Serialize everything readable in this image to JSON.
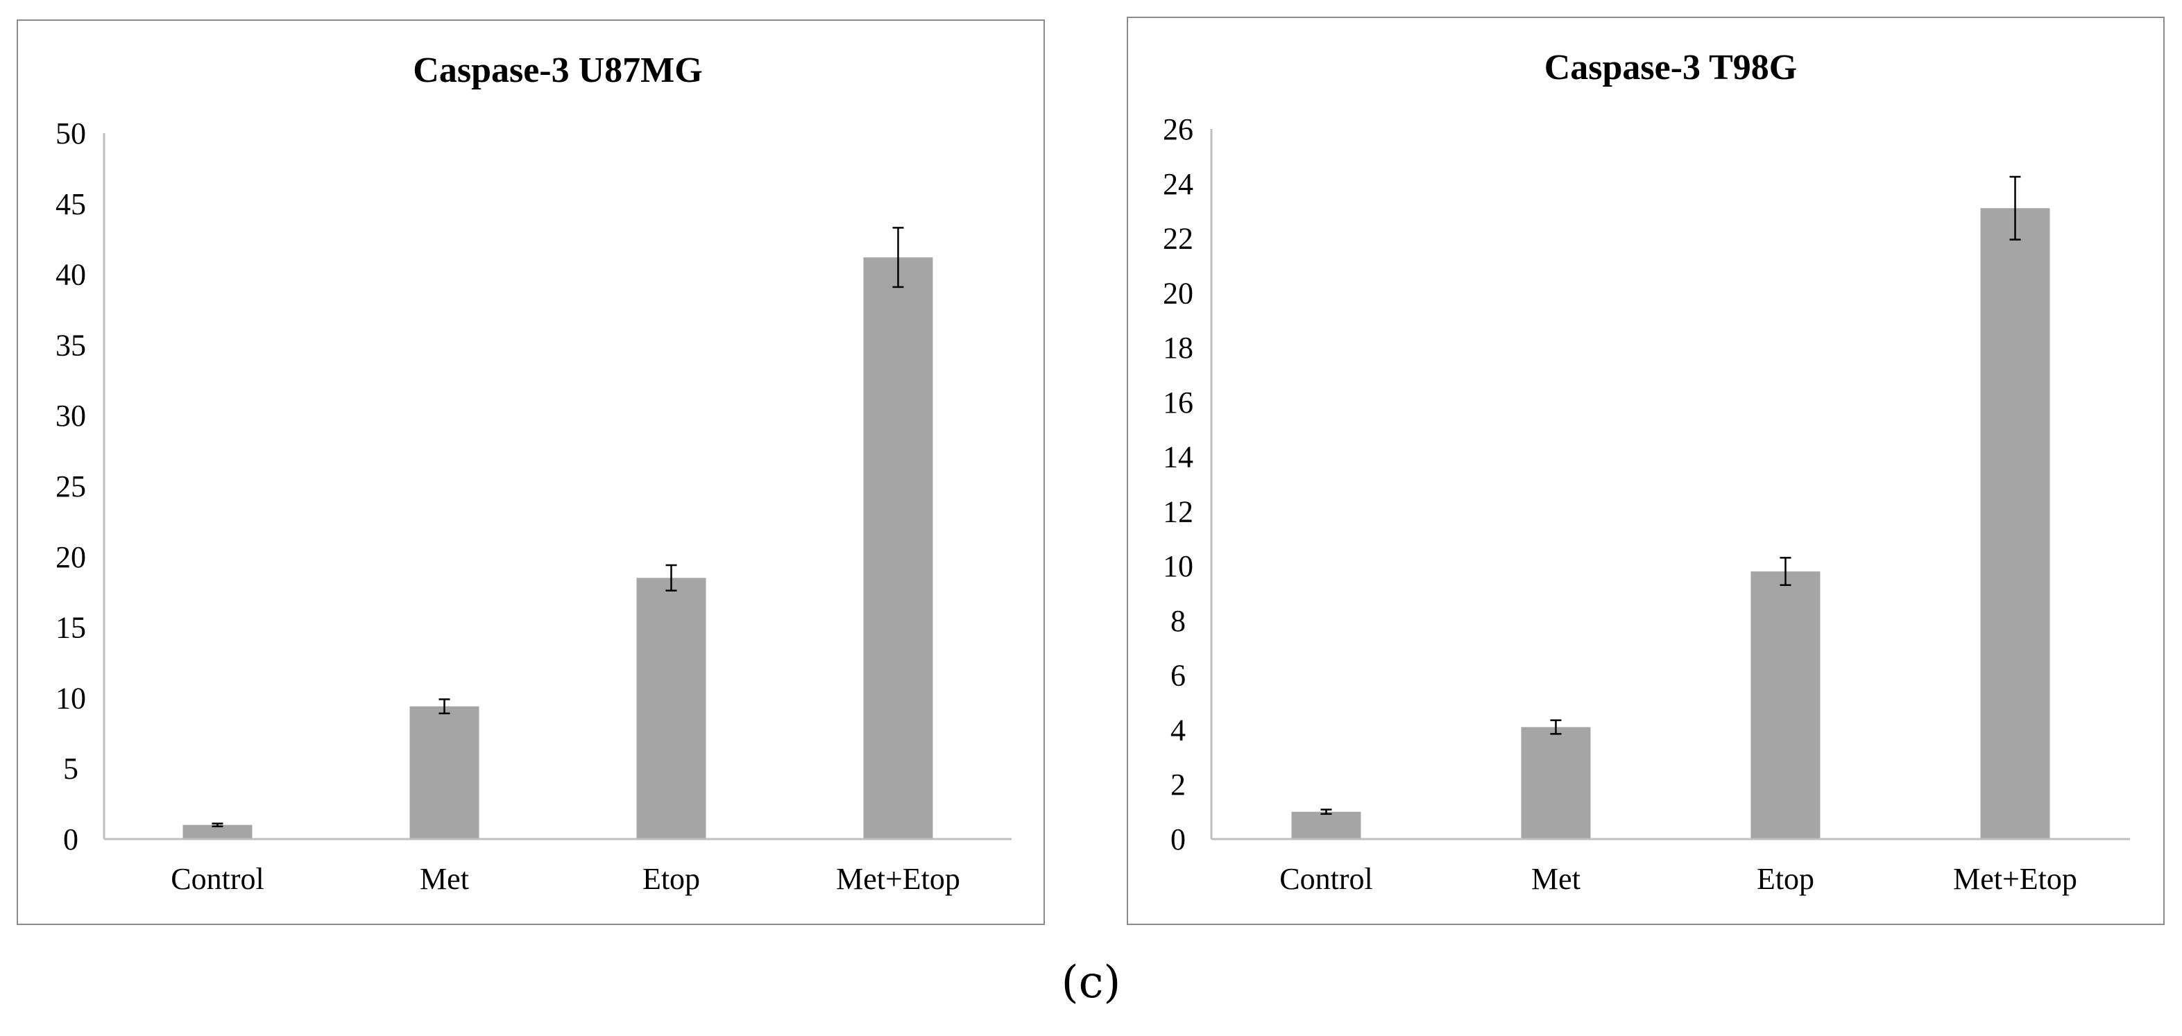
{
  "figure_caption": "(c)",
  "chart_data": [
    {
      "type": "bar",
      "title": "Caspase-3 U87MG",
      "categories": [
        "Control",
        "Met",
        "Etop",
        "Met+Etop"
      ],
      "values": [
        1.0,
        9.4,
        18.5,
        41.2
      ],
      "errors": [
        0.1,
        0.5,
        0.9,
        2.1
      ],
      "ylim": [
        0,
        50
      ],
      "yticks": [
        0,
        5,
        10,
        15,
        20,
        25,
        30,
        35,
        40,
        45,
        50
      ],
      "xlabel": "",
      "ylabel": "",
      "bar_color": "#a5a5a5",
      "legend": "none",
      "grid": false
    },
    {
      "type": "bar",
      "title": "Caspase-3 T98G",
      "categories": [
        "Control",
        "Met",
        "Etop",
        "Met+Etop"
      ],
      "values": [
        1.0,
        4.1,
        9.8,
        23.1
      ],
      "errors": [
        0.08,
        0.25,
        0.5,
        1.15
      ],
      "ylim": [
        0,
        26
      ],
      "yticks": [
        0,
        2,
        4,
        6,
        8,
        10,
        12,
        14,
        16,
        18,
        20,
        22,
        24,
        26
      ],
      "xlabel": "",
      "ylabel": "",
      "bar_color": "#a5a5a5",
      "legend": "none",
      "grid": false
    }
  ]
}
